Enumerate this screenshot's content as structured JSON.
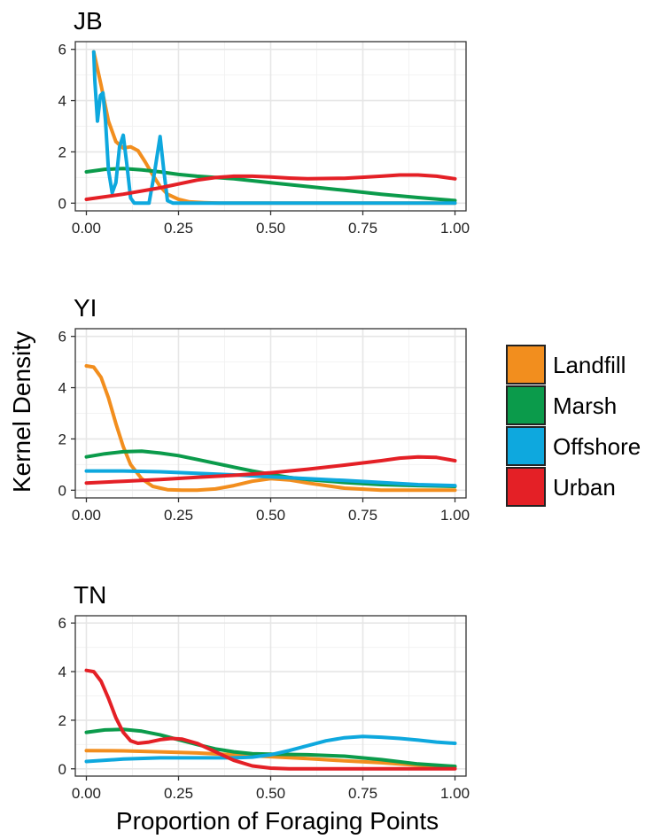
{
  "chart_data": {
    "type": "line",
    "xlabel": "Proportion of Foraging Points",
    "ylabel": "Kernel Density",
    "xlim": [
      -0.03,
      1.03
    ],
    "ylim": [
      -0.3,
      6.3
    ],
    "xticks": [
      "0.00",
      "0.25",
      "0.50",
      "0.75",
      "1.00"
    ],
    "yticks": [
      "0",
      "2",
      "4",
      "6"
    ],
    "legend": {
      "position": "right",
      "entries": [
        {
          "label": "Landfill",
          "color": "#F28E1E"
        },
        {
          "label": "Marsh",
          "color": "#0B9B4B"
        },
        {
          "label": "Offshore",
          "color": "#0EA8DE"
        },
        {
          "label": "Urban",
          "color": "#E42026"
        }
      ]
    },
    "panels": [
      {
        "title": "JB",
        "series": [
          {
            "name": "Landfill",
            "x": [
              0.02,
              0.04,
              0.06,
              0.08,
              0.1,
              0.12,
              0.14,
              0.16,
              0.18,
              0.2,
              0.22,
              0.25,
              0.28,
              0.32,
              0.36,
              1.0
            ],
            "y": [
              5.9,
              4.6,
              3.2,
              2.4,
              2.15,
              2.2,
              2.05,
              1.6,
              1.1,
              0.65,
              0.35,
              0.15,
              0.05,
              0.02,
              0.0,
              0.0
            ]
          },
          {
            "name": "Marsh",
            "x": [
              0.0,
              0.05,
              0.1,
              0.15,
              0.2,
              0.25,
              0.3,
              0.4,
              0.5,
              0.6,
              0.7,
              0.8,
              0.9,
              1.0
            ],
            "y": [
              1.22,
              1.32,
              1.35,
              1.3,
              1.22,
              1.12,
              1.05,
              0.95,
              0.8,
              0.65,
              0.5,
              0.35,
              0.22,
              0.1
            ]
          },
          {
            "name": "Offshore",
            "x": [
              0.02,
              0.023,
              0.03,
              0.038,
              0.045,
              0.052,
              0.06,
              0.07,
              0.08,
              0.09,
              0.1,
              0.11,
              0.12,
              0.13,
              0.14,
              0.15,
              0.17,
              0.185,
              0.2,
              0.21,
              0.22,
              0.235,
              0.25,
              1.0
            ],
            "y": [
              5.9,
              4.8,
              3.2,
              4.2,
              4.3,
              3.2,
              1.3,
              0.4,
              0.8,
              2.2,
              2.65,
              1.5,
              0.2,
              0.0,
              0.0,
              0.0,
              0.0,
              1.2,
              2.6,
              1.3,
              0.1,
              0.0,
              0.0,
              0.0
            ]
          },
          {
            "name": "Urban",
            "x": [
              0.0,
              0.1,
              0.2,
              0.3,
              0.35,
              0.4,
              0.45,
              0.5,
              0.55,
              0.6,
              0.7,
              0.8,
              0.85,
              0.9,
              0.95,
              1.0
            ],
            "y": [
              0.15,
              0.35,
              0.6,
              0.9,
              1.0,
              1.05,
              1.05,
              1.02,
              0.98,
              0.95,
              0.97,
              1.05,
              1.1,
              1.1,
              1.05,
              0.95
            ]
          }
        ]
      },
      {
        "title": "YI",
        "series": [
          {
            "name": "Landfill",
            "x": [
              0.0,
              0.02,
              0.04,
              0.06,
              0.08,
              0.1,
              0.12,
              0.15,
              0.18,
              0.22,
              0.26,
              0.3,
              0.35,
              0.4,
              0.45,
              0.5,
              0.55,
              0.6,
              0.7,
              0.8,
              0.9,
              1.0
            ],
            "y": [
              4.85,
              4.8,
              4.4,
              3.6,
              2.6,
              1.7,
              1.0,
              0.45,
              0.15,
              0.02,
              0.0,
              0.0,
              0.05,
              0.18,
              0.35,
              0.45,
              0.4,
              0.28,
              0.08,
              0.0,
              0.0,
              0.0
            ]
          },
          {
            "name": "Marsh",
            "x": [
              0.0,
              0.05,
              0.1,
              0.15,
              0.2,
              0.25,
              0.3,
              0.35,
              0.4,
              0.45,
              0.5,
              0.55,
              0.6,
              0.7,
              0.8,
              0.9,
              1.0
            ],
            "y": [
              1.3,
              1.42,
              1.5,
              1.52,
              1.45,
              1.35,
              1.2,
              1.05,
              0.9,
              0.75,
              0.62,
              0.5,
              0.42,
              0.3,
              0.22,
              0.18,
              0.15
            ]
          },
          {
            "name": "Offshore",
            "x": [
              0.0,
              0.1,
              0.2,
              0.3,
              0.4,
              0.5,
              0.6,
              0.7,
              0.8,
              0.9,
              1.0
            ],
            "y": [
              0.75,
              0.75,
              0.72,
              0.66,
              0.6,
              0.52,
              0.45,
              0.38,
              0.3,
              0.22,
              0.18
            ]
          },
          {
            "name": "Urban",
            "x": [
              0.0,
              0.1,
              0.2,
              0.3,
              0.4,
              0.5,
              0.6,
              0.7,
              0.8,
              0.85,
              0.9,
              0.95,
              1.0
            ],
            "y": [
              0.28,
              0.35,
              0.42,
              0.5,
              0.58,
              0.68,
              0.82,
              0.98,
              1.15,
              1.25,
              1.3,
              1.28,
              1.15
            ]
          }
        ]
      },
      {
        "title": "TN",
        "series": [
          {
            "name": "Landfill",
            "x": [
              0.0,
              0.1,
              0.2,
              0.3,
              0.4,
              0.5,
              0.6,
              0.7,
              0.8,
              0.9,
              1.0
            ],
            "y": [
              0.75,
              0.74,
              0.7,
              0.65,
              0.58,
              0.5,
              0.42,
              0.33,
              0.25,
              0.15,
              0.08
            ]
          },
          {
            "name": "Marsh",
            "x": [
              0.0,
              0.05,
              0.1,
              0.15,
              0.2,
              0.25,
              0.3,
              0.35,
              0.4,
              0.45,
              0.5,
              0.6,
              0.7,
              0.8,
              0.9,
              1.0
            ],
            "y": [
              1.5,
              1.6,
              1.62,
              1.55,
              1.4,
              1.2,
              1.0,
              0.82,
              0.7,
              0.62,
              0.6,
              0.58,
              0.52,
              0.38,
              0.2,
              0.1
            ]
          },
          {
            "name": "Offshore",
            "x": [
              0.0,
              0.1,
              0.2,
              0.3,
              0.4,
              0.45,
              0.5,
              0.55,
              0.6,
              0.65,
              0.7,
              0.75,
              0.8,
              0.85,
              0.9,
              0.95,
              1.0
            ],
            "y": [
              0.3,
              0.4,
              0.45,
              0.45,
              0.45,
              0.48,
              0.58,
              0.75,
              0.95,
              1.15,
              1.28,
              1.33,
              1.3,
              1.25,
              1.18,
              1.1,
              1.05
            ]
          },
          {
            "name": "Urban",
            "x": [
              0.0,
              0.02,
              0.04,
              0.06,
              0.08,
              0.1,
              0.12,
              0.14,
              0.17,
              0.2,
              0.23,
              0.26,
              0.3,
              0.35,
              0.4,
              0.45,
              0.5,
              0.55,
              0.6,
              0.7,
              0.8,
              0.9,
              1.0
            ],
            "y": [
              4.05,
              4.0,
              3.6,
              2.9,
              2.1,
              1.5,
              1.15,
              1.05,
              1.1,
              1.2,
              1.25,
              1.22,
              1.05,
              0.7,
              0.35,
              0.12,
              0.03,
              0.0,
              0.0,
              0.0,
              0.0,
              0.0,
              0.0
            ]
          }
        ]
      }
    ]
  }
}
